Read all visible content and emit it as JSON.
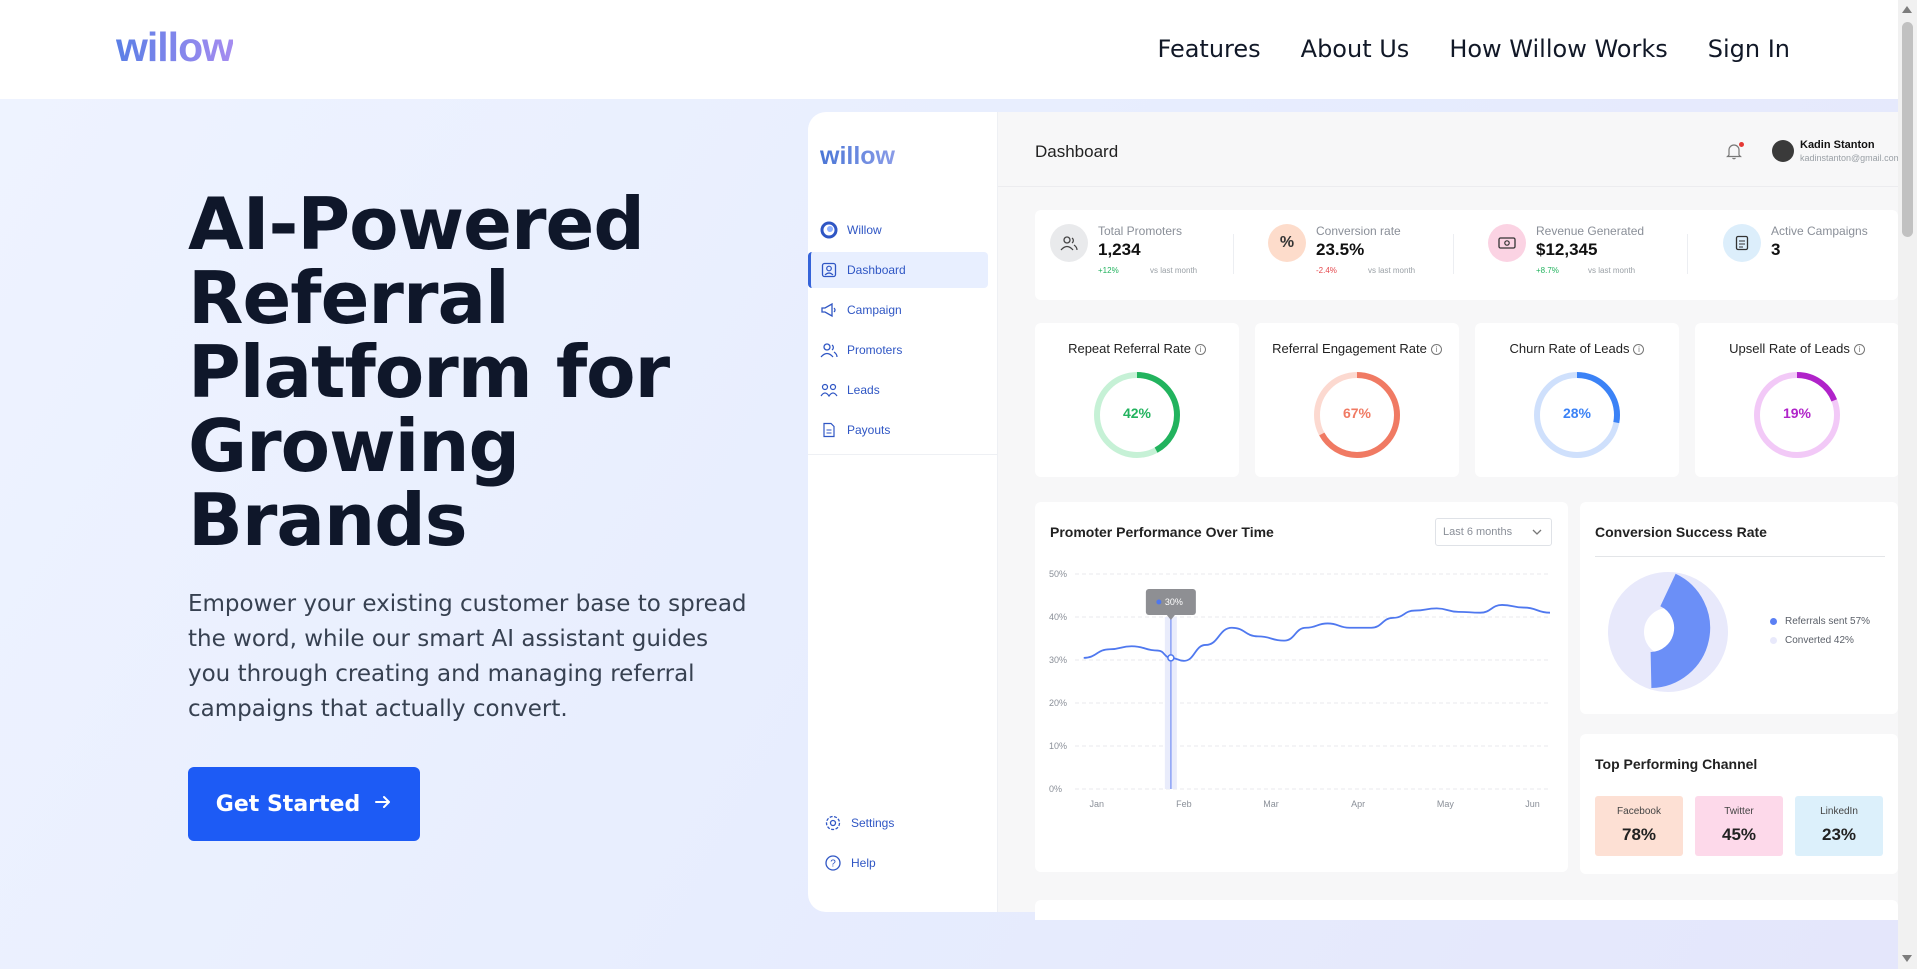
{
  "nav": {
    "logo": "willow",
    "links": [
      "Features",
      "About Us",
      "How Willow Works",
      "Sign In"
    ]
  },
  "hero": {
    "headline": "AI-Powered Referral Platform for Growing Brands",
    "subtext": "Empower your existing customer base to spread the word, while our smart AI assistant guides you through creating and managing referral campaigns that actually convert.",
    "cta_label": "Get Started",
    "cta_icon": "arrow-right-icon"
  },
  "dashboard": {
    "sidebar": {
      "logo": "willow",
      "items": [
        {
          "label": "Willow",
          "icon": "willow-logo-icon"
        },
        {
          "label": "Dashboard",
          "icon": "dashboard-icon",
          "active": true
        },
        {
          "label": "Campaign",
          "icon": "megaphone-icon"
        },
        {
          "label": "Promoters",
          "icon": "users-icon"
        },
        {
          "label": "Leads",
          "icon": "leads-icon"
        },
        {
          "label": "Payouts",
          "icon": "document-icon"
        }
      ],
      "bottom": [
        {
          "label": "Settings",
          "icon": "gear-icon"
        },
        {
          "label": "Help",
          "icon": "help-icon"
        }
      ]
    },
    "header": {
      "title": "Dashboard",
      "user_name": "Kadin Stanton",
      "user_email": "kadinstanton@gmail.com"
    },
    "stats": [
      {
        "label": "Total Promoters",
        "value": "1,234",
        "delta": "+12%",
        "vs": "vs last month",
        "color": "#e9eaec"
      },
      {
        "label": "Conversion rate",
        "value": "23.5%",
        "delta": "-2.4%",
        "vs": "vs last month",
        "color": "#fddccb"
      },
      {
        "label": "Revenue Generated",
        "value": "$12,345",
        "delta": "+8.7%",
        "vs": "vs last month",
        "color": "#fbd3e3"
      },
      {
        "label": "Active Campaigns",
        "value": "3",
        "delta": "",
        "vs": "",
        "color": "#dceefb"
      }
    ],
    "rings": [
      {
        "label": "Repeat Referral Rate",
        "value": "42%",
        "pct": 42,
        "color": "#22b35e",
        "track": "#c6f1d6",
        "text": "#22b35e"
      },
      {
        "label": "Referral Engagement Rate",
        "value": "67%",
        "pct": 67,
        "color": "#f07a63",
        "track": "#fcd9d0",
        "text": "#f07a63"
      },
      {
        "label": "Churn Rate of Leads",
        "value": "28%",
        "pct": 28,
        "color": "#3b82f6",
        "track": "#cfe0fc",
        "text": "#3b82f6"
      },
      {
        "label": "Upsell Rate of Leads",
        "value": "19%",
        "pct": 19,
        "color": "#b023c9",
        "track": "#f2c9f7",
        "text": "#b023c9"
      }
    ],
    "performance": {
      "title": "Promoter Performance Over Time",
      "range_select": "Last 6 months",
      "tooltip": "30%"
    },
    "conversion": {
      "title": "Conversion Success Rate",
      "legend": [
        "Referrals sent 57%",
        "Converted 42%"
      ]
    },
    "channels": {
      "title": "Top Performing Channel",
      "items": [
        {
          "name": "Facebook",
          "value": "78%",
          "color": "#fde0d4"
        },
        {
          "name": "Twitter",
          "value": "45%",
          "color": "#fdd9ea"
        },
        {
          "name": "LinkedIn",
          "value": "23%",
          "color": "#dcf0fb"
        }
      ]
    }
  },
  "chart_data": {
    "type": "line",
    "title": "Promoter Performance Over Time",
    "categories": [
      "Jan",
      "Feb",
      "Mar",
      "Apr",
      "May",
      "Jun"
    ],
    "y_ticks": [
      "50%",
      "40%",
      "30%",
      "20%",
      "10%",
      "0%"
    ],
    "ylim": [
      0,
      50
    ],
    "x": [
      0,
      0.3,
      0.55,
      0.85,
      1.0,
      1.15,
      1.4,
      1.7,
      2.0,
      2.3,
      2.55,
      2.8,
      3.05,
      3.3,
      3.55,
      3.8,
      4.05,
      4.3,
      4.55,
      4.8,
      5.05,
      5.35
    ],
    "values": [
      30.5,
      32.5,
      33.2,
      32.2,
      30.5,
      29.8,
      33.5,
      37.5,
      35.5,
      34.5,
      37.5,
      38.5,
      37.5,
      37.5,
      39.8,
      41.5,
      42.0,
      41.2,
      41.0,
      42.8,
      42.2,
      41.0
    ],
    "highlight": {
      "x": 1.0,
      "label": "30%"
    },
    "grid": true
  }
}
